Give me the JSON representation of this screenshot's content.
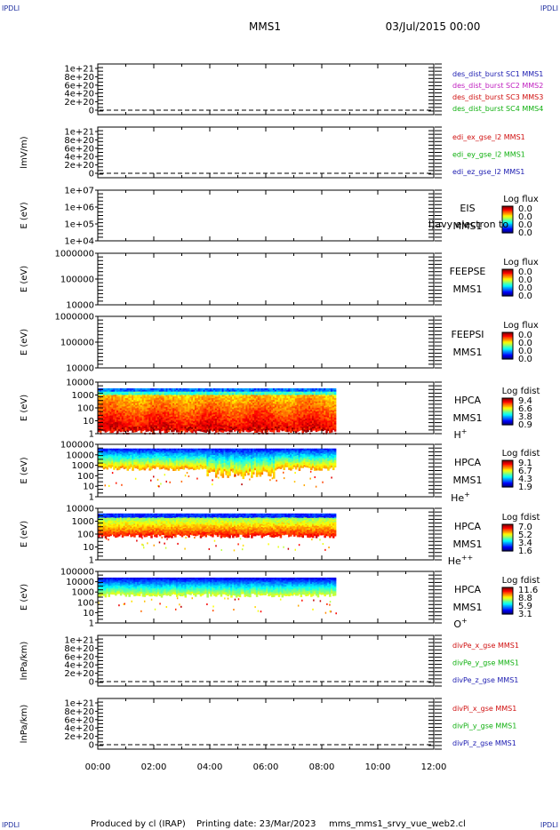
{
  "header": {
    "corner_label": "IPDLI",
    "spacecraft": "MMS1",
    "datetime": "03/Jul/2015 00:00"
  },
  "footer": {
    "credit": "Produced by cl (IRAP)",
    "printing_date": "Printing date: 23/Mar/2023",
    "filename": "mms_mms1_srvy_vue_web2.cl"
  },
  "colors": {
    "frame": "#000000",
    "blue_label": "#1a1ab0",
    "red_label": "#d01010",
    "green_label": "#10b010",
    "magenta_label": "#c020c0"
  },
  "chart_data": [
    {
      "type": "line",
      "name": "des_dist_burst",
      "ylabel": "",
      "yticks": [
        "1e+21",
        "8e+20",
        "6e+20",
        "4e+20",
        "2e+20",
        "0"
      ],
      "ylim": [
        0,
        1.1e+21
      ],
      "series": [
        {
          "name": "des_dist_burst SC1 MMS1",
          "color": "#1a1ab0",
          "values": []
        },
        {
          "name": "des_dist_burst SC2 MMS2",
          "color": "#c020c0",
          "values": []
        },
        {
          "name": "des_dist_burst SC3 MMS3",
          "color": "#d01010",
          "values": []
        },
        {
          "name": "des_dist_burst SC4 MMS4",
          "color": "#10b010",
          "values": []
        }
      ],
      "zero_line": "dashed"
    },
    {
      "type": "line",
      "name": "edi",
      "ylabel": "lmV/m)",
      "yticks": [
        "1e+21",
        "8e+20",
        "6e+20",
        "4e+20",
        "2e+20",
        "0"
      ],
      "ylim": [
        0,
        1.1e+21
      ],
      "series": [
        {
          "name": "edi_ex_gse_l2 MMS1",
          "color": "#d01010",
          "values": []
        },
        {
          "name": "edi_ey_gse_l2 MMS1",
          "color": "#10b010",
          "values": []
        },
        {
          "name": "edi_ez_gse_l2 MMS1",
          "color": "#1a1ab0",
          "values": []
        }
      ],
      "zero_line": "dashed"
    },
    {
      "type": "heatmap",
      "name": "EIS",
      "ylabel": "E (eV)",
      "yticks": [
        "1e+07",
        "1e+06",
        "1e+05",
        "1e+04"
      ],
      "instrument": [
        "EIS",
        "MMS1"
      ],
      "overlay_text": "l)avy electron to",
      "colorbar_title": "Log flux",
      "colorbar_values": [
        "0.0",
        "0.0",
        "0.0",
        "0.0"
      ],
      "cells": []
    },
    {
      "type": "heatmap",
      "name": "FEEPSE",
      "ylabel": "E (eV)",
      "yticks": [
        "1000000",
        "100000",
        "10000"
      ],
      "instrument": [
        "FEEPSE",
        "MMS1"
      ],
      "colorbar_title": "Log flux",
      "colorbar_values": [
        "0.0",
        "0.0",
        "0.0",
        "0.0"
      ],
      "cells": []
    },
    {
      "type": "heatmap",
      "name": "FEEPSI",
      "ylabel": "E (eV)",
      "yticks": [
        "1000000",
        "100000",
        "10000"
      ],
      "instrument": [
        "FEEPSI",
        "MMS1"
      ],
      "colorbar_title": "Log flux",
      "colorbar_values": [
        "0.0",
        "0.0",
        "0.0",
        "0.0"
      ],
      "cells": []
    },
    {
      "type": "heatmap",
      "name": "HPCA H+",
      "ylabel": "E (eV)",
      "yticks": [
        "10000",
        "1000",
        "100",
        "10",
        "1"
      ],
      "instrument": [
        "HPCA",
        "MMS1"
      ],
      "species": "H",
      "species_charge": "+",
      "colorbar_title": "Log fdist",
      "colorbar_values": [
        "9.4",
        "6.6",
        "3.8",
        "0.9"
      ],
      "data_end_hour": 8.5,
      "profile": "h"
    },
    {
      "type": "heatmap",
      "name": "HPCA He+",
      "ylabel": "E (eV)",
      "yticks": [
        "100000",
        "10000",
        "1000",
        "100",
        "10",
        "1"
      ],
      "instrument": [
        "HPCA",
        "MMS1"
      ],
      "species": "He",
      "species_charge": "+",
      "colorbar_title": "Log fdist",
      "colorbar_values": [
        "9.1",
        "6.7",
        "4.3",
        "1.9"
      ],
      "data_end_hour": 8.5,
      "profile": "he1"
    },
    {
      "type": "heatmap",
      "name": "HPCA He++",
      "ylabel": "E (eV)",
      "yticks": [
        "10000",
        "1000",
        "100",
        "10",
        "1"
      ],
      "instrument": [
        "HPCA",
        "MMS1"
      ],
      "species": "He",
      "species_charge": "++",
      "colorbar_title": "Log fdist",
      "colorbar_values": [
        "7.0",
        "5.2",
        "3.4",
        "1.6"
      ],
      "data_end_hour": 8.5,
      "profile": "he2"
    },
    {
      "type": "heatmap",
      "name": "HPCA O+",
      "ylabel": "E (eV)",
      "yticks": [
        "100000",
        "10000",
        "1000",
        "100",
        "10",
        "1"
      ],
      "instrument": [
        "HPCA",
        "MMS1"
      ],
      "species": "O",
      "species_charge": "+",
      "colorbar_title": "Log fdist",
      "colorbar_values": [
        "11.6",
        "8.8",
        "5.9",
        "3.1"
      ],
      "data_end_hour": 8.5,
      "profile": "o"
    },
    {
      "type": "line",
      "name": "divPe",
      "ylabel": "lnPa/km)",
      "yticks": [
        "1e+21",
        "8e+20",
        "6e+20",
        "4e+20",
        "2e+20",
        "0"
      ],
      "ylim": [
        0,
        1.1e+21
      ],
      "series": [
        {
          "name": "divPe_x_gse MMS1",
          "color": "#d01010",
          "values": []
        },
        {
          "name": "divPe_y_gse MMS1",
          "color": "#10b010",
          "values": []
        },
        {
          "name": "divPe_z_gse MMS1",
          "color": "#1a1ab0",
          "values": []
        }
      ],
      "zero_line": "dashed"
    },
    {
      "type": "line",
      "name": "divPi",
      "ylabel": "lnPa/km)",
      "yticks": [
        "1e+21",
        "8e+20",
        "6e+20",
        "4e+20",
        "2e+20",
        "0"
      ],
      "ylim": [
        0,
        1.1e+21
      ],
      "series": [
        {
          "name": "divPi_x_gse MMS1",
          "color": "#d01010",
          "values": []
        },
        {
          "name": "divPi_y_gse MMS1",
          "color": "#10b010",
          "values": []
        },
        {
          "name": "divPi_z_gse MMS1",
          "color": "#1a1ab0",
          "values": []
        }
      ],
      "zero_line": "dashed"
    }
  ],
  "x_axis": {
    "ticks": [
      "00:00",
      "02:00",
      "04:00",
      "06:00",
      "08:00",
      "10:00",
      "12:00"
    ],
    "range_hours": [
      0,
      12
    ]
  }
}
